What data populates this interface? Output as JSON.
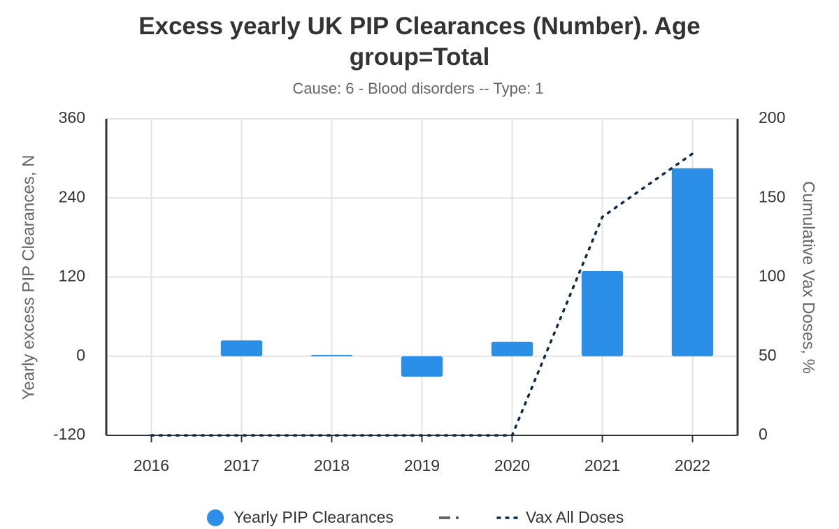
{
  "chart_data": {
    "type": "bar",
    "title": "Excess yearly UK PIP Clearances (Number). Age group=Total",
    "subtitle": "Cause: 6 - Blood disorders -- Type: 1",
    "y_label": "Yearly excess PIP Clearances, N",
    "y2_label": "Cumulative Vax Doses, %",
    "categories": [
      "2016",
      "2017",
      "2018",
      "2019",
      "2020",
      "2021",
      "2022"
    ],
    "series": [
      {
        "name": "Yearly PIP Clearances",
        "type": "bar",
        "color": "#2b8fe8",
        "values": [
          0,
          24,
          2,
          -31,
          22,
          129,
          285
        ]
      },
      {
        "name": "Vax All Doses",
        "type": "line",
        "axis": "y2",
        "color": "#0d2a4a",
        "values": [
          0,
          0,
          0,
          0,
          0,
          138,
          178
        ]
      }
    ],
    "ylim": [
      -120,
      360
    ],
    "yticks": [
      -120,
      0,
      120,
      240,
      360
    ],
    "y2lim": [
      0,
      200
    ],
    "y2ticks": [
      0,
      50,
      100,
      150,
      200
    ],
    "grid": true
  }
}
